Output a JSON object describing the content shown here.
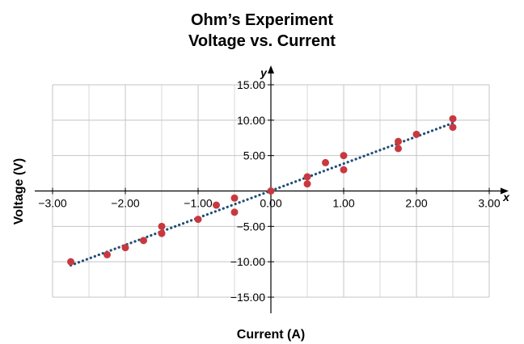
{
  "chart_data": {
    "type": "scatter",
    "title": "Ohm’s Experiment",
    "subtitle": "Voltage vs. Current",
    "xlabel": "Current (A)",
    "ylabel": "Voltage (V)",
    "x_axis_name": "x",
    "y_axis_name": "y",
    "xlim": [
      -3,
      3
    ],
    "ylim": [
      -15,
      15
    ],
    "x_ticks": [
      -3,
      -2,
      -1,
      0,
      1,
      2,
      3
    ],
    "x_tick_labels": [
      "−3.00",
      "−2.00",
      "−1.00",
      "0.00",
      "1.00",
      "2.00",
      "3.00"
    ],
    "y_ticks": [
      -15,
      -10,
      -5,
      5,
      10,
      15
    ],
    "y_tick_labels": [
      "−15.00",
      "−10.00",
      "−5.00",
      "5.00",
      "10.00",
      "15.00"
    ],
    "grid": true,
    "points": {
      "x": [
        -2.75,
        -2.25,
        -2.0,
        -1.75,
        -1.5,
        -1.5,
        -1.0,
        -0.75,
        -0.5,
        -0.5,
        0.0,
        0.5,
        0.5,
        0.75,
        1.0,
        1.0,
        1.75,
        1.75,
        2.0,
        2.5,
        2.5
      ],
      "y": [
        -10.0,
        -9.0,
        -8.0,
        -7.0,
        -5.0,
        -6.0,
        -4.0,
        -2.0,
        -1.0,
        -3.0,
        0.0,
        1.0,
        2.0,
        4.0,
        3.0,
        5.0,
        6.0,
        7.0,
        8.0,
        9.0,
        10.2
      ]
    },
    "fit_line": {
      "x": [
        -2.75,
        2.5
      ],
      "y": [
        -10.5,
        9.6
      ],
      "style": "dotted"
    },
    "point_color": "#c8393f",
    "line_color": "#1f4e79"
  }
}
